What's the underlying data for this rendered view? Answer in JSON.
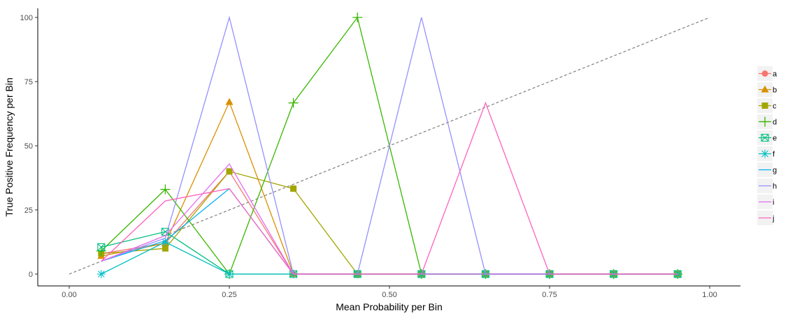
{
  "chart_data": {
    "type": "line",
    "xlabel": "Mean Probability per Bin",
    "ylabel": "True Positive Frequency per Bin",
    "xlim": [
      -0.05,
      1.05
    ],
    "ylim": [
      -5,
      102
    ],
    "x_ticks": [
      0.0,
      0.25,
      0.5,
      0.75,
      1.0
    ],
    "x_tick_labels": [
      "0.00",
      "0.25",
      "0.50",
      "0.75",
      "1.00"
    ],
    "y_ticks": [
      0,
      25,
      50,
      75,
      100
    ],
    "y_tick_labels": [
      "0",
      "25",
      "50",
      "75",
      "100"
    ],
    "grid": false,
    "legend_position": "right",
    "reference_line": {
      "x": [
        0,
        1
      ],
      "y": [
        0,
        100
      ],
      "style": "dashed",
      "color": "#7f7f7f"
    },
    "series": [
      {
        "name": "a",
        "color": "#F8766D",
        "marker": "circle",
        "x": [
          0.05,
          0.15,
          0.25,
          0.35,
          0.45,
          0.55,
          0.65,
          0.75,
          0.85,
          0.95
        ],
        "y": [
          8,
          12,
          40,
          0,
          0,
          0,
          0,
          0,
          0,
          0
        ]
      },
      {
        "name": "b",
        "color": "#D89000",
        "marker": "triangle",
        "x": [
          0.05,
          0.15,
          0.25,
          0.35,
          0.45,
          0.55,
          0.65,
          0.75,
          0.85,
          0.95
        ],
        "y": [
          7,
          12,
          67,
          0,
          0,
          0,
          0,
          0,
          0,
          0
        ]
      },
      {
        "name": "c",
        "color": "#A3A500",
        "marker": "square",
        "x": [
          0.05,
          0.15,
          0.25,
          0.35,
          0.45,
          0.55,
          0.65,
          0.75,
          0.85,
          0.95
        ],
        "y": [
          8,
          10,
          40,
          33.3,
          0,
          0,
          0,
          0,
          0,
          0
        ]
      },
      {
        "name": "d",
        "color": "#39B600",
        "marker": "plus",
        "x": [
          0.05,
          0.15,
          0.25,
          0.35,
          0.45,
          0.55,
          0.65,
          0.75,
          0.85,
          0.95
        ],
        "y": [
          9,
          33,
          0,
          66.7,
          100,
          0,
          0,
          0,
          0,
          0
        ]
      },
      {
        "name": "e",
        "color": "#00BF7D",
        "marker": "square-cross",
        "x": [
          0.05,
          0.15,
          0.25,
          0.35,
          0.45,
          0.55,
          0.65,
          0.75,
          0.85,
          0.95
        ],
        "y": [
          10.5,
          16.5,
          0,
          0,
          0,
          0,
          0,
          0,
          0,
          0
        ]
      },
      {
        "name": "f",
        "color": "#00BFC4",
        "marker": "asterisk",
        "x": [
          0.05,
          0.15,
          0.25,
          0.35,
          0.45,
          0.55,
          0.65,
          0.75,
          0.85,
          0.95
        ],
        "y": [
          0,
          12.5,
          0,
          0,
          0,
          0,
          0,
          0,
          0,
          0
        ]
      },
      {
        "name": "g",
        "color": "#00B0F6",
        "marker": "none",
        "x": [
          0.05,
          0.15,
          0.25,
          0.35,
          0.45,
          0.55,
          0.65,
          0.75,
          0.85,
          0.95
        ],
        "y": [
          5,
          13,
          33.3,
          0,
          0,
          0,
          0,
          0,
          0,
          0
        ]
      },
      {
        "name": "h",
        "color": "#9590FF",
        "marker": "none",
        "x": [
          0.05,
          0.15,
          0.25,
          0.35,
          0.45,
          0.55,
          0.65,
          0.75,
          0.85,
          0.95
        ],
        "y": [
          5,
          14,
          100,
          0,
          0,
          100,
          0,
          0,
          0,
          0
        ]
      },
      {
        "name": "i",
        "color": "#E76BF3",
        "marker": "none",
        "x": [
          0.05,
          0.15,
          0.25,
          0.35,
          0.45,
          0.55,
          0.65,
          0.75,
          0.85,
          0.95
        ],
        "y": [
          5,
          15,
          42.9,
          0,
          0,
          0,
          0,
          0,
          0,
          0
        ]
      },
      {
        "name": "j",
        "color": "#FF62BC",
        "marker": "none",
        "x": [
          0.05,
          0.15,
          0.25,
          0.35,
          0.45,
          0.55,
          0.65,
          0.75,
          0.85,
          0.95
        ],
        "y": [
          5,
          28.5,
          33.3,
          0,
          0,
          0,
          66.7,
          0,
          0,
          0
        ]
      }
    ]
  }
}
